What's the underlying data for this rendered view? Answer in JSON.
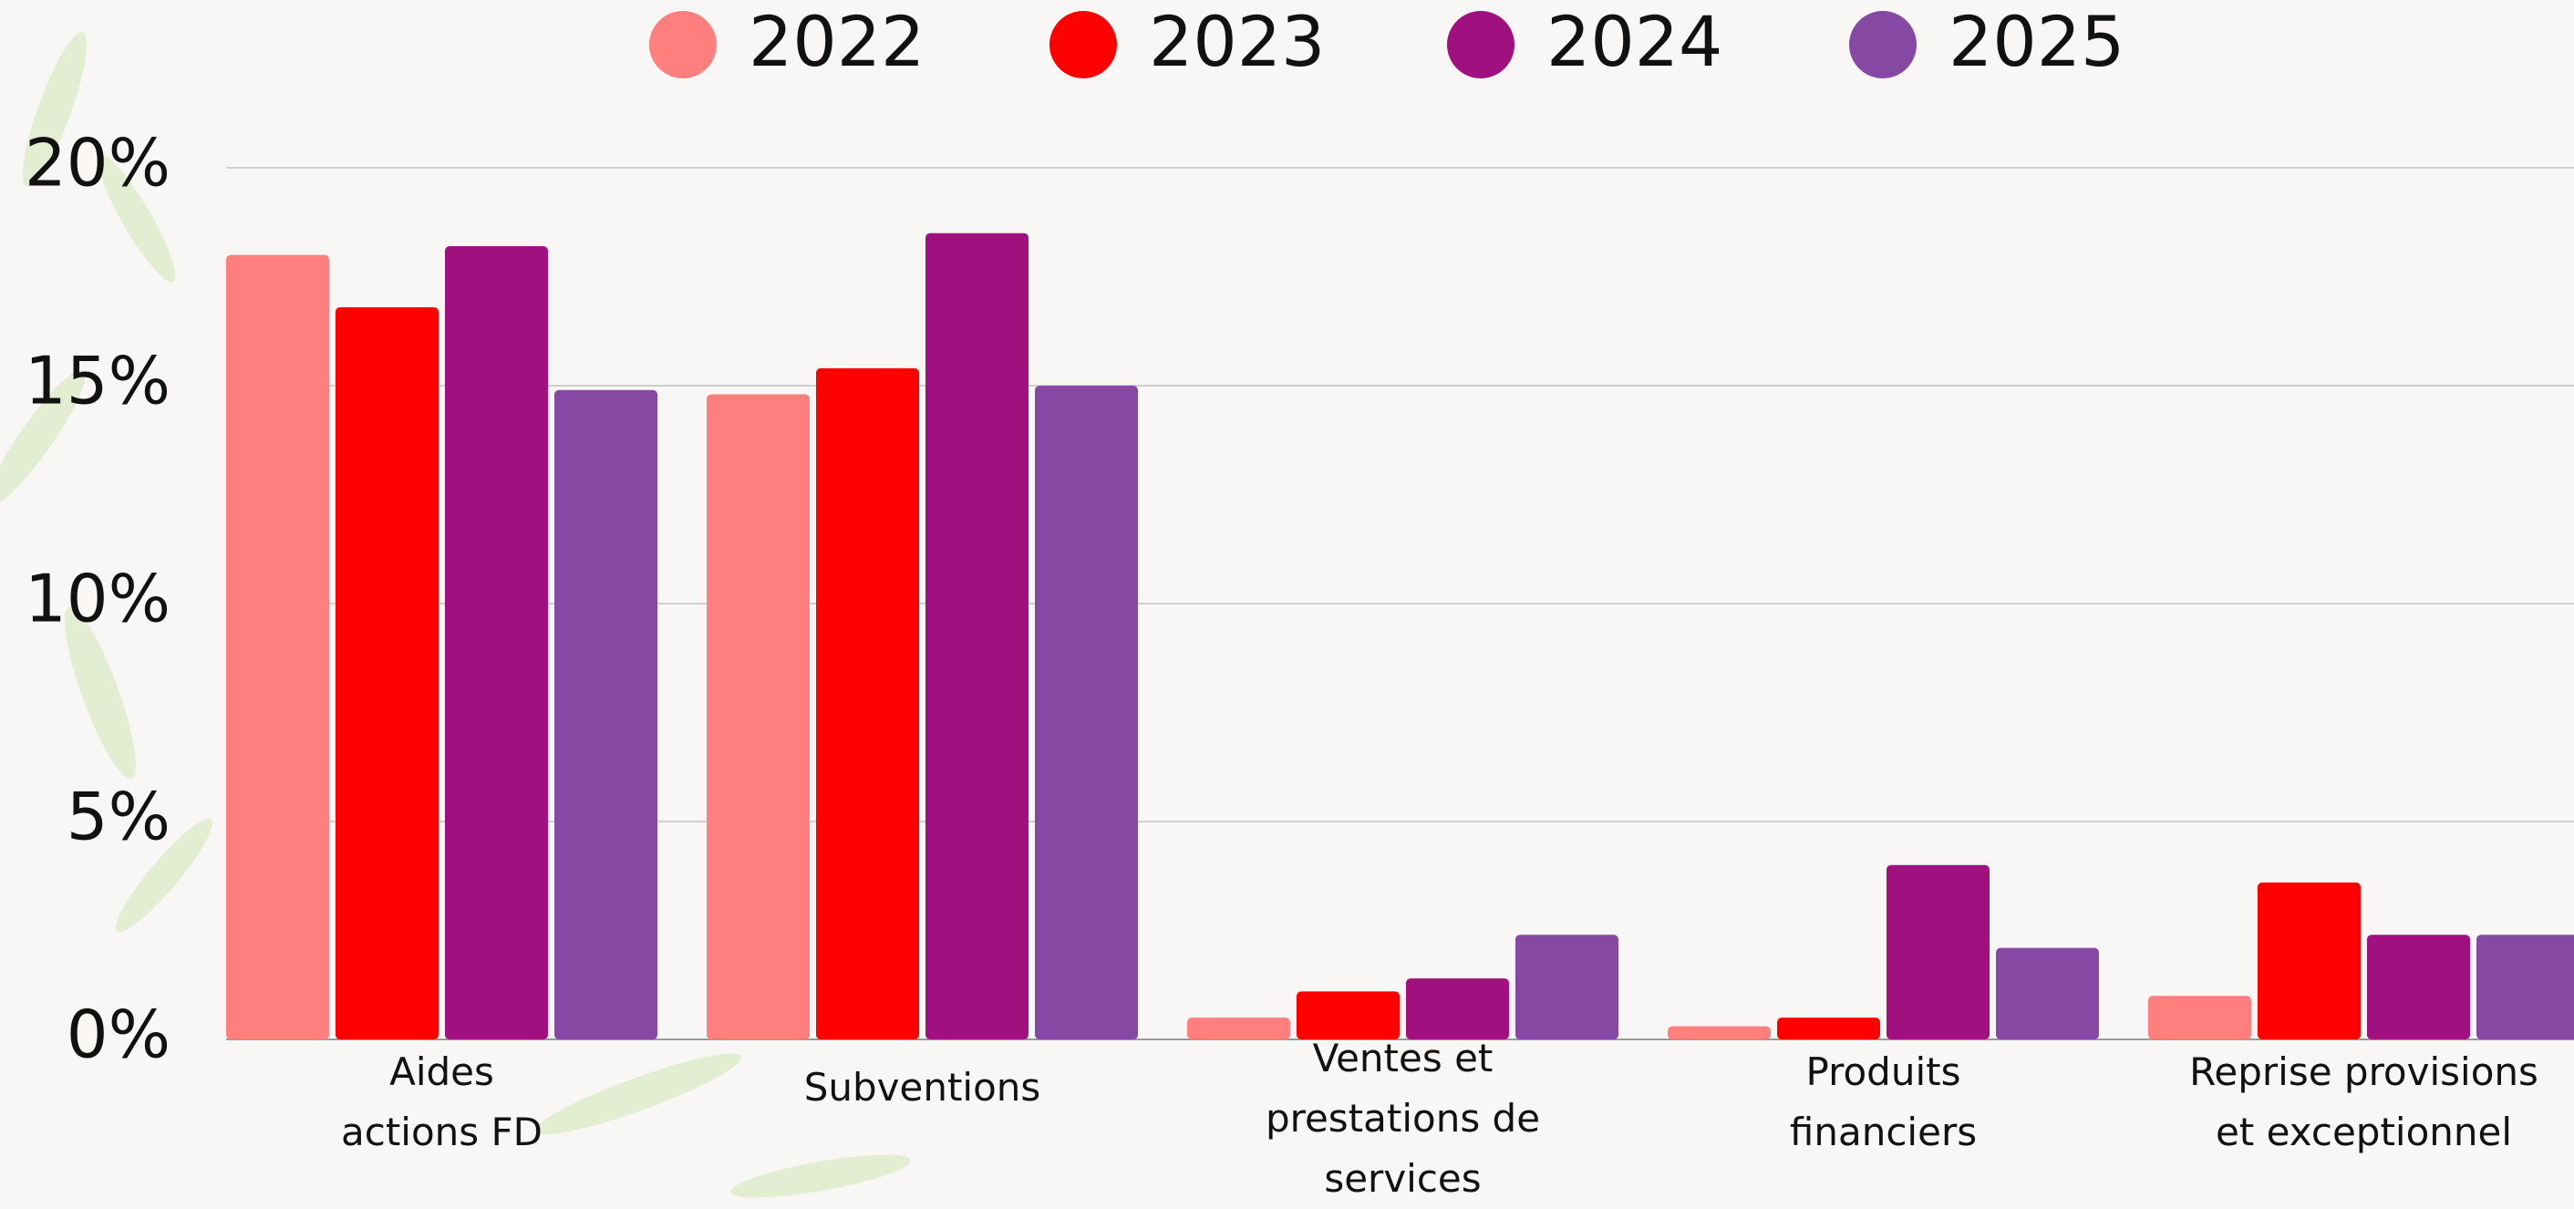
{
  "chart_data": {
    "type": "bar",
    "categories": [
      "Aides actions FD",
      "Subventions",
      "Ventes et prestations de services",
      "Produits financiers",
      "Reprise provisions et exceptionnel"
    ],
    "series": [
      {
        "name": "2022",
        "color": "#ff7f7f",
        "values": [
          18.0,
          14.8,
          0.5,
          0.3,
          1.0
        ]
      },
      {
        "name": "2023",
        "color": "#ff0000",
        "values": [
          16.8,
          15.4,
          1.1,
          0.5,
          3.6
        ]
      },
      {
        "name": "2024",
        "color": "#a0107f",
        "values": [
          18.2,
          18.5,
          1.4,
          4.0,
          2.4
        ]
      },
      {
        "name": "2025",
        "color": "#8549a3",
        "values": [
          14.9,
          15.0,
          2.4,
          2.1,
          2.4
        ]
      }
    ],
    "ylim": [
      0,
      20
    ],
    "yticks": [
      {
        "value": 0,
        "label": "0%"
      },
      {
        "value": 5,
        "label": "5%"
      },
      {
        "value": 10,
        "label": "10%"
      },
      {
        "value": 15,
        "label": "15%"
      },
      {
        "value": 20,
        "label": "20%"
      }
    ],
    "grid": true,
    "legend": "top"
  }
}
